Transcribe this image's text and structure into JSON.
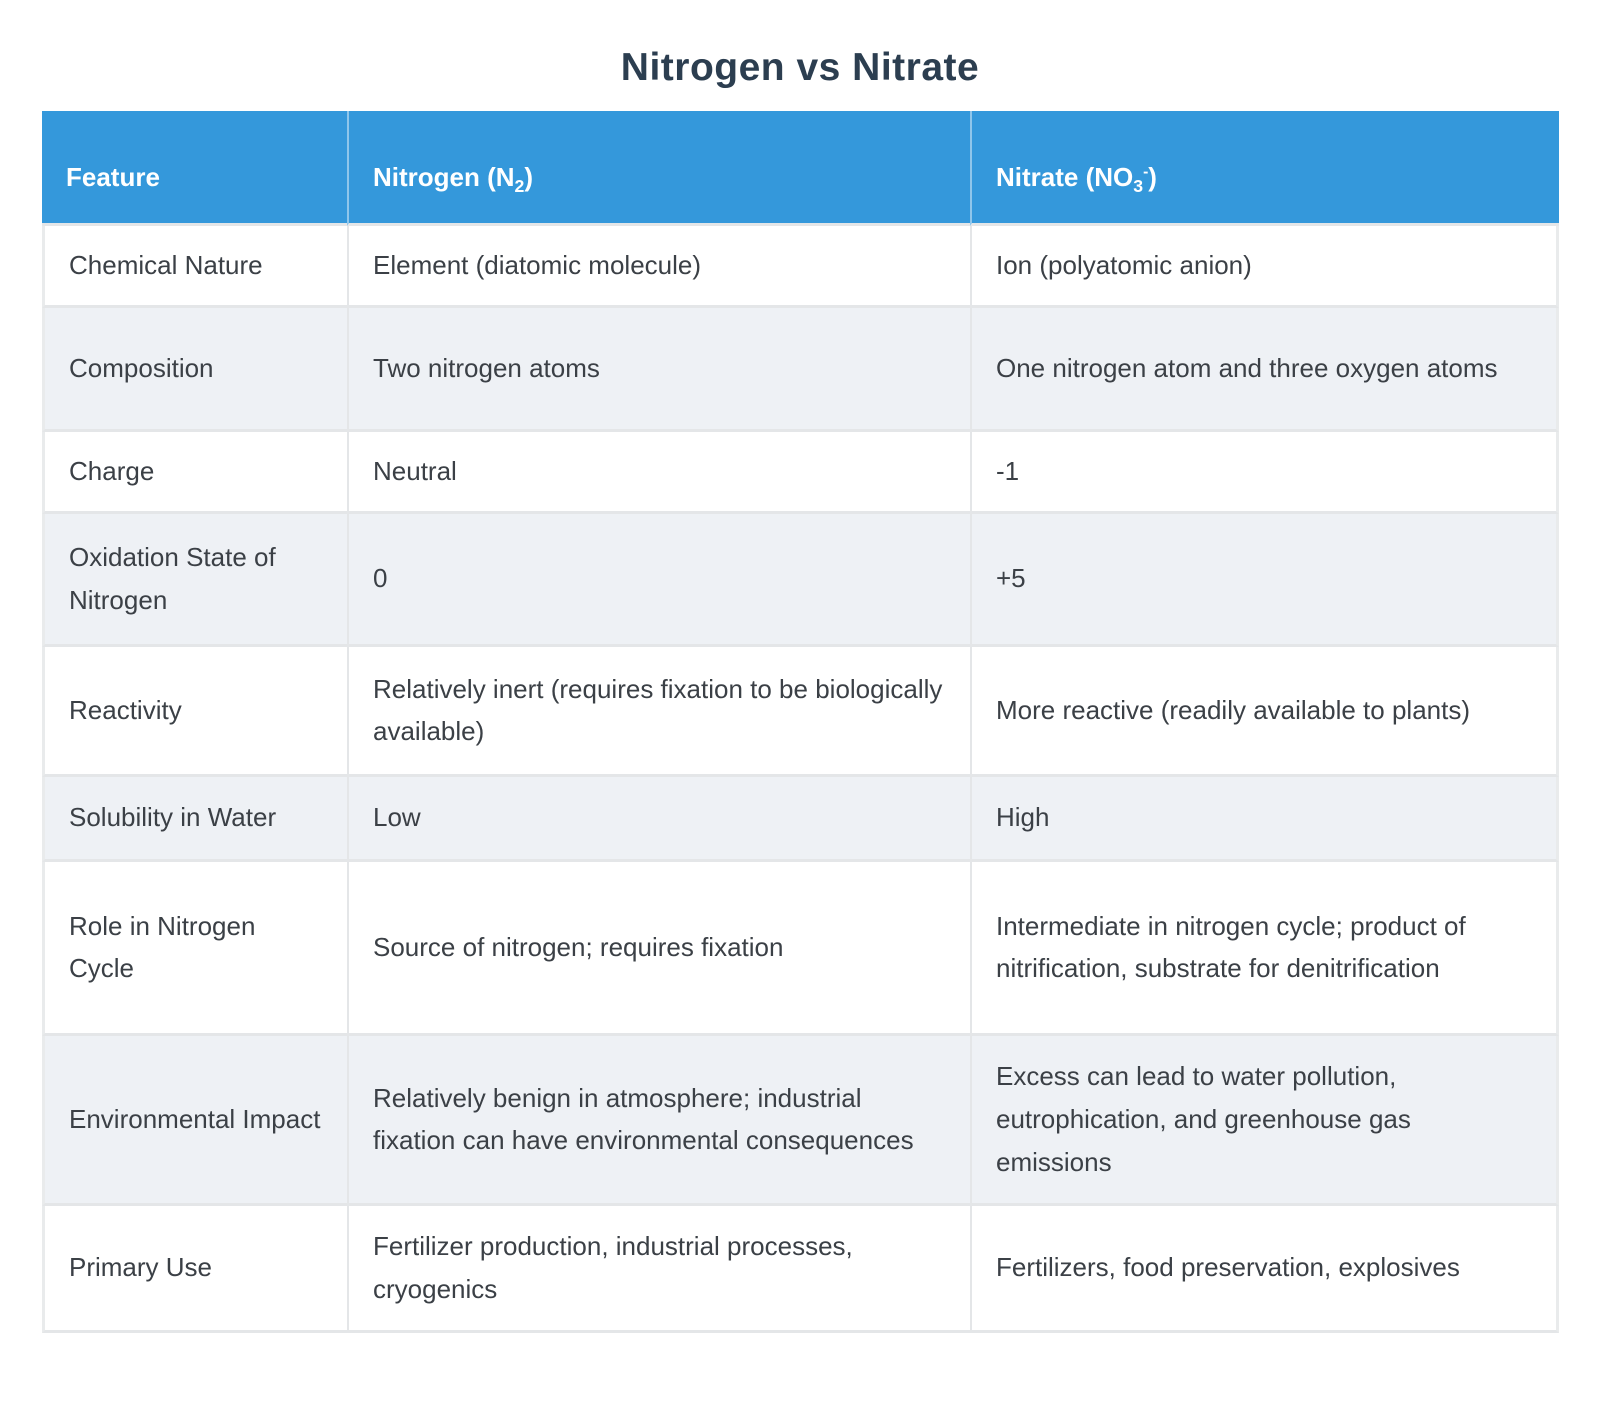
{
  "chart_data": {
    "type": "table",
    "title": "Nitrogen vs Nitrate",
    "columns": [
      "Feature",
      "Nitrogen (N₂)",
      "Nitrate (NO₃⁻)"
    ],
    "rows": [
      [
        "Chemical Nature",
        "Element (diatomic molecule)",
        "Ion (polyatomic anion)"
      ],
      [
        "Composition",
        "Two nitrogen atoms",
        "One nitrogen atom and three oxygen atoms"
      ],
      [
        "Charge",
        "Neutral",
        "-1"
      ],
      [
        "Oxidation State of Nitrogen",
        "0",
        "+5"
      ],
      [
        "Reactivity",
        "Relatively inert (requires fixation to be biologically available)",
        "More reactive (readily available to plants)"
      ],
      [
        "Solubility in Water",
        "Low",
        "High"
      ],
      [
        "Role in Nitrogen Cycle",
        "Source of nitrogen; requires fixation",
        "Intermediate in nitrogen cycle; product of nitrification, substrate for denitrification"
      ],
      [
        "Environmental Impact",
        "Relatively benign in atmosphere; industrial fixation can have environmental consequences",
        "Excess can lead to water pollution, eutrophication, and greenhouse gas emissions"
      ],
      [
        "Primary Use",
        "Fertilizer production, industrial processes, cryogenics",
        "Fertilizers, food preservation, explosives"
      ]
    ]
  },
  "header_rich": {
    "feature": {
      "label": "Feature"
    },
    "nitrogen": {
      "pre": "Nitrogen (N",
      "sub": "2",
      "post": ")"
    },
    "nitrate": {
      "pre": "Nitrate (NO",
      "sub": "3",
      "sup": "-",
      "post": ")"
    }
  },
  "colors": {
    "header_bg": "#3498db",
    "header_text": "#ffffff",
    "title_text": "#2c3e50",
    "body_text": "#3b4046",
    "row_bg": "#ffffff",
    "row_alt_bg": "#eef1f5",
    "border": "#e4e6e8"
  }
}
